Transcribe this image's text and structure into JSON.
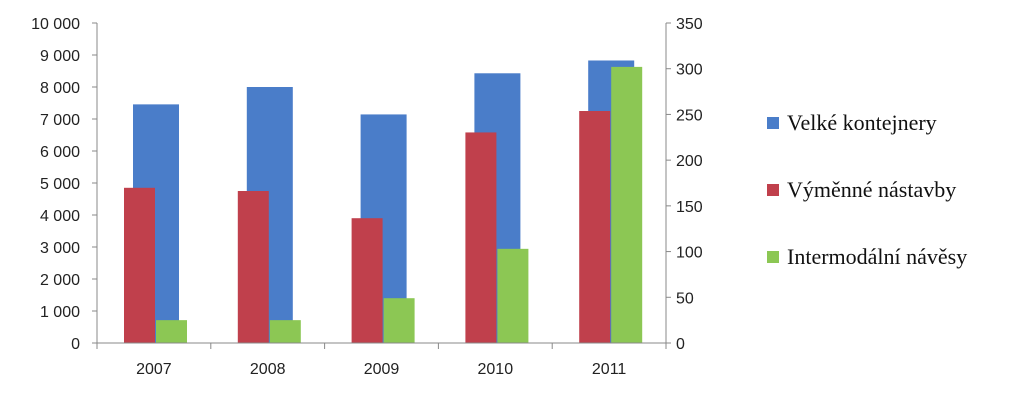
{
  "chart_data": {
    "type": "bar",
    "categories": [
      "2007",
      "2008",
      "2009",
      "2010",
      "2011"
    ],
    "series": [
      {
        "name": "Velké kontejnery",
        "axis": "right",
        "color": "#4a7dc9",
        "values": [
          261,
          280,
          250,
          295,
          309
        ]
      },
      {
        "name": "Výměnné nástavby",
        "axis": "left",
        "color": "#c0404c",
        "values": [
          4850,
          4750,
          3900,
          6580,
          7250
        ]
      },
      {
        "name": "Intermodální návěsy",
        "axis": "right",
        "color": "#8cc754",
        "values": [
          25,
          25,
          49,
          103,
          302
        ]
      }
    ],
    "y_left": {
      "lim": [
        0,
        10000
      ],
      "ticks": [
        "0",
        "1 000",
        "2 000",
        "3 000",
        "4 000",
        "5 000",
        "6 000",
        "7 000",
        "8 000",
        "9 000",
        "10 000"
      ]
    },
    "y_right": {
      "lim": [
        0,
        350
      ],
      "ticks": [
        "0",
        "50",
        "100",
        "150",
        "200",
        "250",
        "300",
        "350"
      ]
    },
    "legend_position": "right",
    "grid": false
  }
}
